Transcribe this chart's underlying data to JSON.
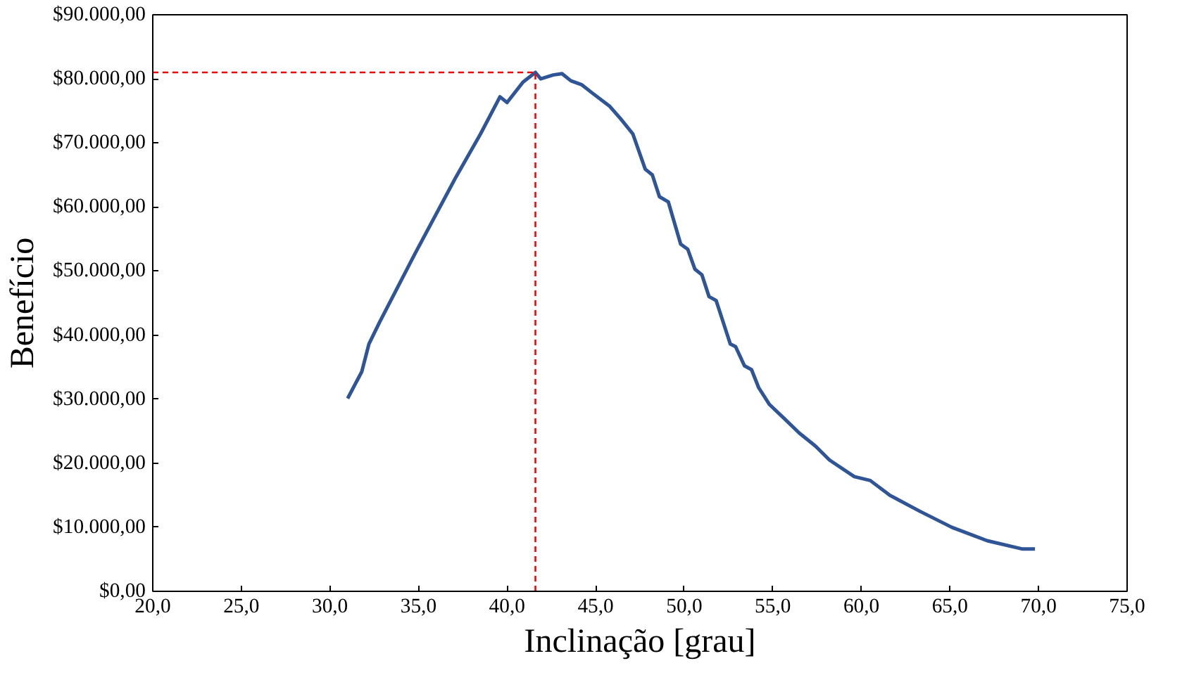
{
  "chart_data": {
    "type": "line",
    "xlabel": "Inclinação [grau]",
    "ylabel": "Benefício",
    "x": [
      31.0,
      31.8,
      32.2,
      32.8,
      34.8,
      37.1,
      38.5,
      39.6,
      40.0,
      40.9,
      41.6,
      41.9,
      42.6,
      43.1,
      43.6,
      44.2,
      44.8,
      45.8,
      46.4,
      47.1,
      47.8,
      48.2,
      48.6,
      49.1,
      49.8,
      50.2,
      50.6,
      51.0,
      51.4,
      51.8,
      52.6,
      52.9,
      53.4,
      53.8,
      54.2,
      54.8,
      55.6,
      56.5,
      57.4,
      58.2,
      59.6,
      60.5,
      61.6,
      63.3,
      65.1,
      67.1,
      69.1,
      69.8
    ],
    "series": [
      {
        "color": "#2f5597",
        "values": [
          30100,
          34300,
          38600,
          42000,
          52700,
          64600,
          71400,
          77200,
          76300,
          79500,
          81000,
          80000,
          80600,
          80800,
          79700,
          79100,
          77800,
          75700,
          73800,
          71400,
          65900,
          65000,
          61600,
          60800,
          54200,
          53400,
          50300,
          49400,
          46000,
          45400,
          38600,
          38200,
          35200,
          34600,
          31800,
          29200,
          27100,
          24700,
          22700,
          20500,
          17900,
          17300,
          15000,
          12500,
          10000,
          7900,
          6600,
          6600
        ]
      }
    ],
    "xlim": [
      20,
      75
    ],
    "ylim": [
      0,
      90000
    ],
    "xticks": [
      {
        "value": 20,
        "label": "20,0"
      },
      {
        "value": 25,
        "label": "25,0"
      },
      {
        "value": 30,
        "label": "30,0"
      },
      {
        "value": 35,
        "label": "35,0"
      },
      {
        "value": 40,
        "label": "40,0"
      },
      {
        "value": 45,
        "label": "45,0"
      },
      {
        "value": 50,
        "label": "50,0"
      },
      {
        "value": 55,
        "label": "55,0"
      },
      {
        "value": 60,
        "label": "60,0"
      },
      {
        "value": 65,
        "label": "65,0"
      },
      {
        "value": 70,
        "label": "70,0"
      },
      {
        "value": 75,
        "label": "75,0"
      }
    ],
    "yticks": [
      {
        "value": 0,
        "label": "$0,00"
      },
      {
        "value": 10000,
        "label": "$10.000,00"
      },
      {
        "value": 20000,
        "label": "$20.000,00"
      },
      {
        "value": 30000,
        "label": "$30.000,00"
      },
      {
        "value": 40000,
        "label": "$40.000,00"
      },
      {
        "value": 50000,
        "label": "$50.000,00"
      },
      {
        "value": 60000,
        "label": "$60.000,00"
      },
      {
        "value": 70000,
        "label": "$70.000,00"
      },
      {
        "value": 80000,
        "label": "$80.000,00"
      },
      {
        "value": 90000,
        "label": "$90.000,00"
      }
    ],
    "ref_lines": [
      {
        "axis": "y",
        "value": 81000,
        "color": "#ff0000",
        "line_style": "dashed"
      },
      {
        "axis": "x",
        "value": 41.6,
        "color": "#ff0000",
        "line_style": "dashed"
      }
    ],
    "grid": false,
    "marker": "none",
    "line_style": "solid"
  }
}
